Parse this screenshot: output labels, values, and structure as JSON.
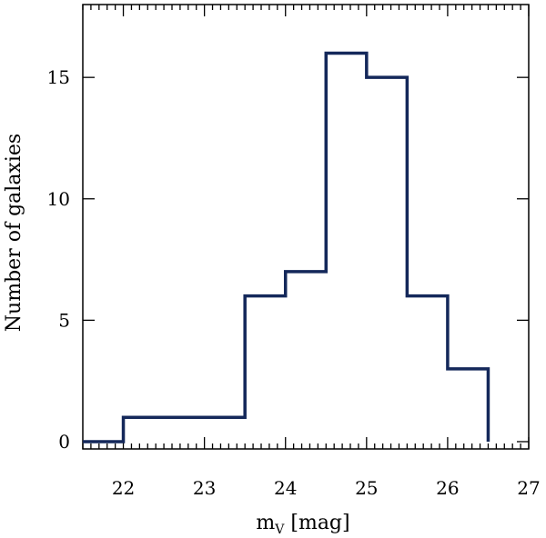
{
  "chart_data": {
    "type": "histogram",
    "title": "",
    "xlabel_main": "m",
    "xlabel_sub": "V",
    "xlabel_unit": " [mag]",
    "ylabel": "Number of galaxies",
    "xlim": [
      21.5,
      27
    ],
    "ylim": [
      -0.3,
      18
    ],
    "grid": false,
    "bin_edges": [
      21.5,
      22,
      22.5,
      23,
      23.5,
      24,
      24.5,
      25,
      25.5,
      26,
      26.5
    ],
    "counts": [
      0,
      1,
      1,
      1,
      6,
      7,
      16,
      15,
      6,
      3
    ],
    "xticks_major": [
      22,
      23,
      24,
      25,
      26,
      27
    ],
    "xtick_labels": [
      "22",
      "23",
      "24",
      "25",
      "26",
      "27"
    ],
    "yticks_major": [
      0,
      5,
      10,
      15
    ],
    "ytick_labels": [
      "0",
      "5",
      "10",
      "15"
    ],
    "line_color": "#14285a"
  }
}
